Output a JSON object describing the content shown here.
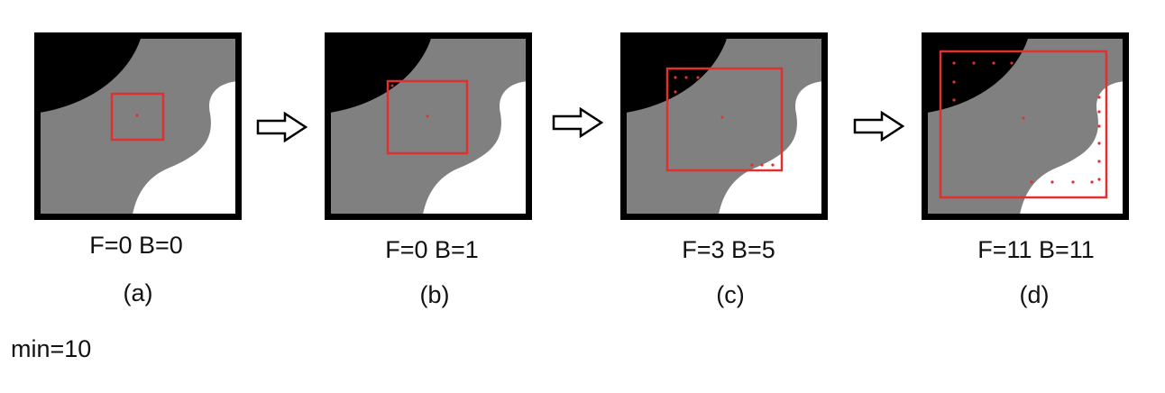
{
  "panels": [
    {
      "counts": "F=0 B=0",
      "caption": "(a)"
    },
    {
      "counts": "F=0 B=1",
      "caption": "(b)"
    },
    {
      "counts": "F=3 B=5",
      "caption": "(c)"
    },
    {
      "counts": "F=11 B=11",
      "caption": "(d)"
    }
  ],
  "min_label": "min=10",
  "colors": {
    "frame": "#000000",
    "gray_region": "#808080",
    "foreground_dark": "#000000",
    "background_light": "#ffffff",
    "window": "#e03030",
    "sample_point": "#e03030"
  }
}
